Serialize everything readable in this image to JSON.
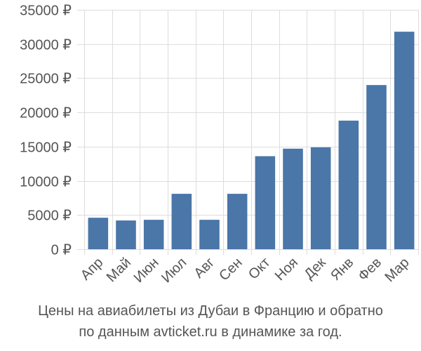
{
  "chart_data": {
    "type": "bar",
    "categories": [
      "Апр",
      "Май",
      "Июн",
      "Июл",
      "Авг",
      "Сен",
      "Окт",
      "Ноя",
      "Дек",
      "Янв",
      "Фев",
      "Мар"
    ],
    "values": [
      4600,
      4200,
      4300,
      8100,
      4300,
      8100,
      13600,
      14700,
      14900,
      18800,
      24000,
      31800
    ],
    "ylim": [
      0,
      35000
    ],
    "y_ticks": [
      0,
      5000,
      10000,
      15000,
      20000,
      25000,
      30000,
      35000
    ],
    "y_tick_suffix": " ₽",
    "xlabel": "",
    "ylabel": "",
    "grid": true,
    "bar_color": "#4a76a8",
    "grid_color": "#dddddd",
    "text_color": "#555555"
  },
  "caption": {
    "line1": "Цены на авиабилеты из Дубаи в Францию и обратно",
    "line2": "по данным avticket.ru в динамике за год."
  }
}
